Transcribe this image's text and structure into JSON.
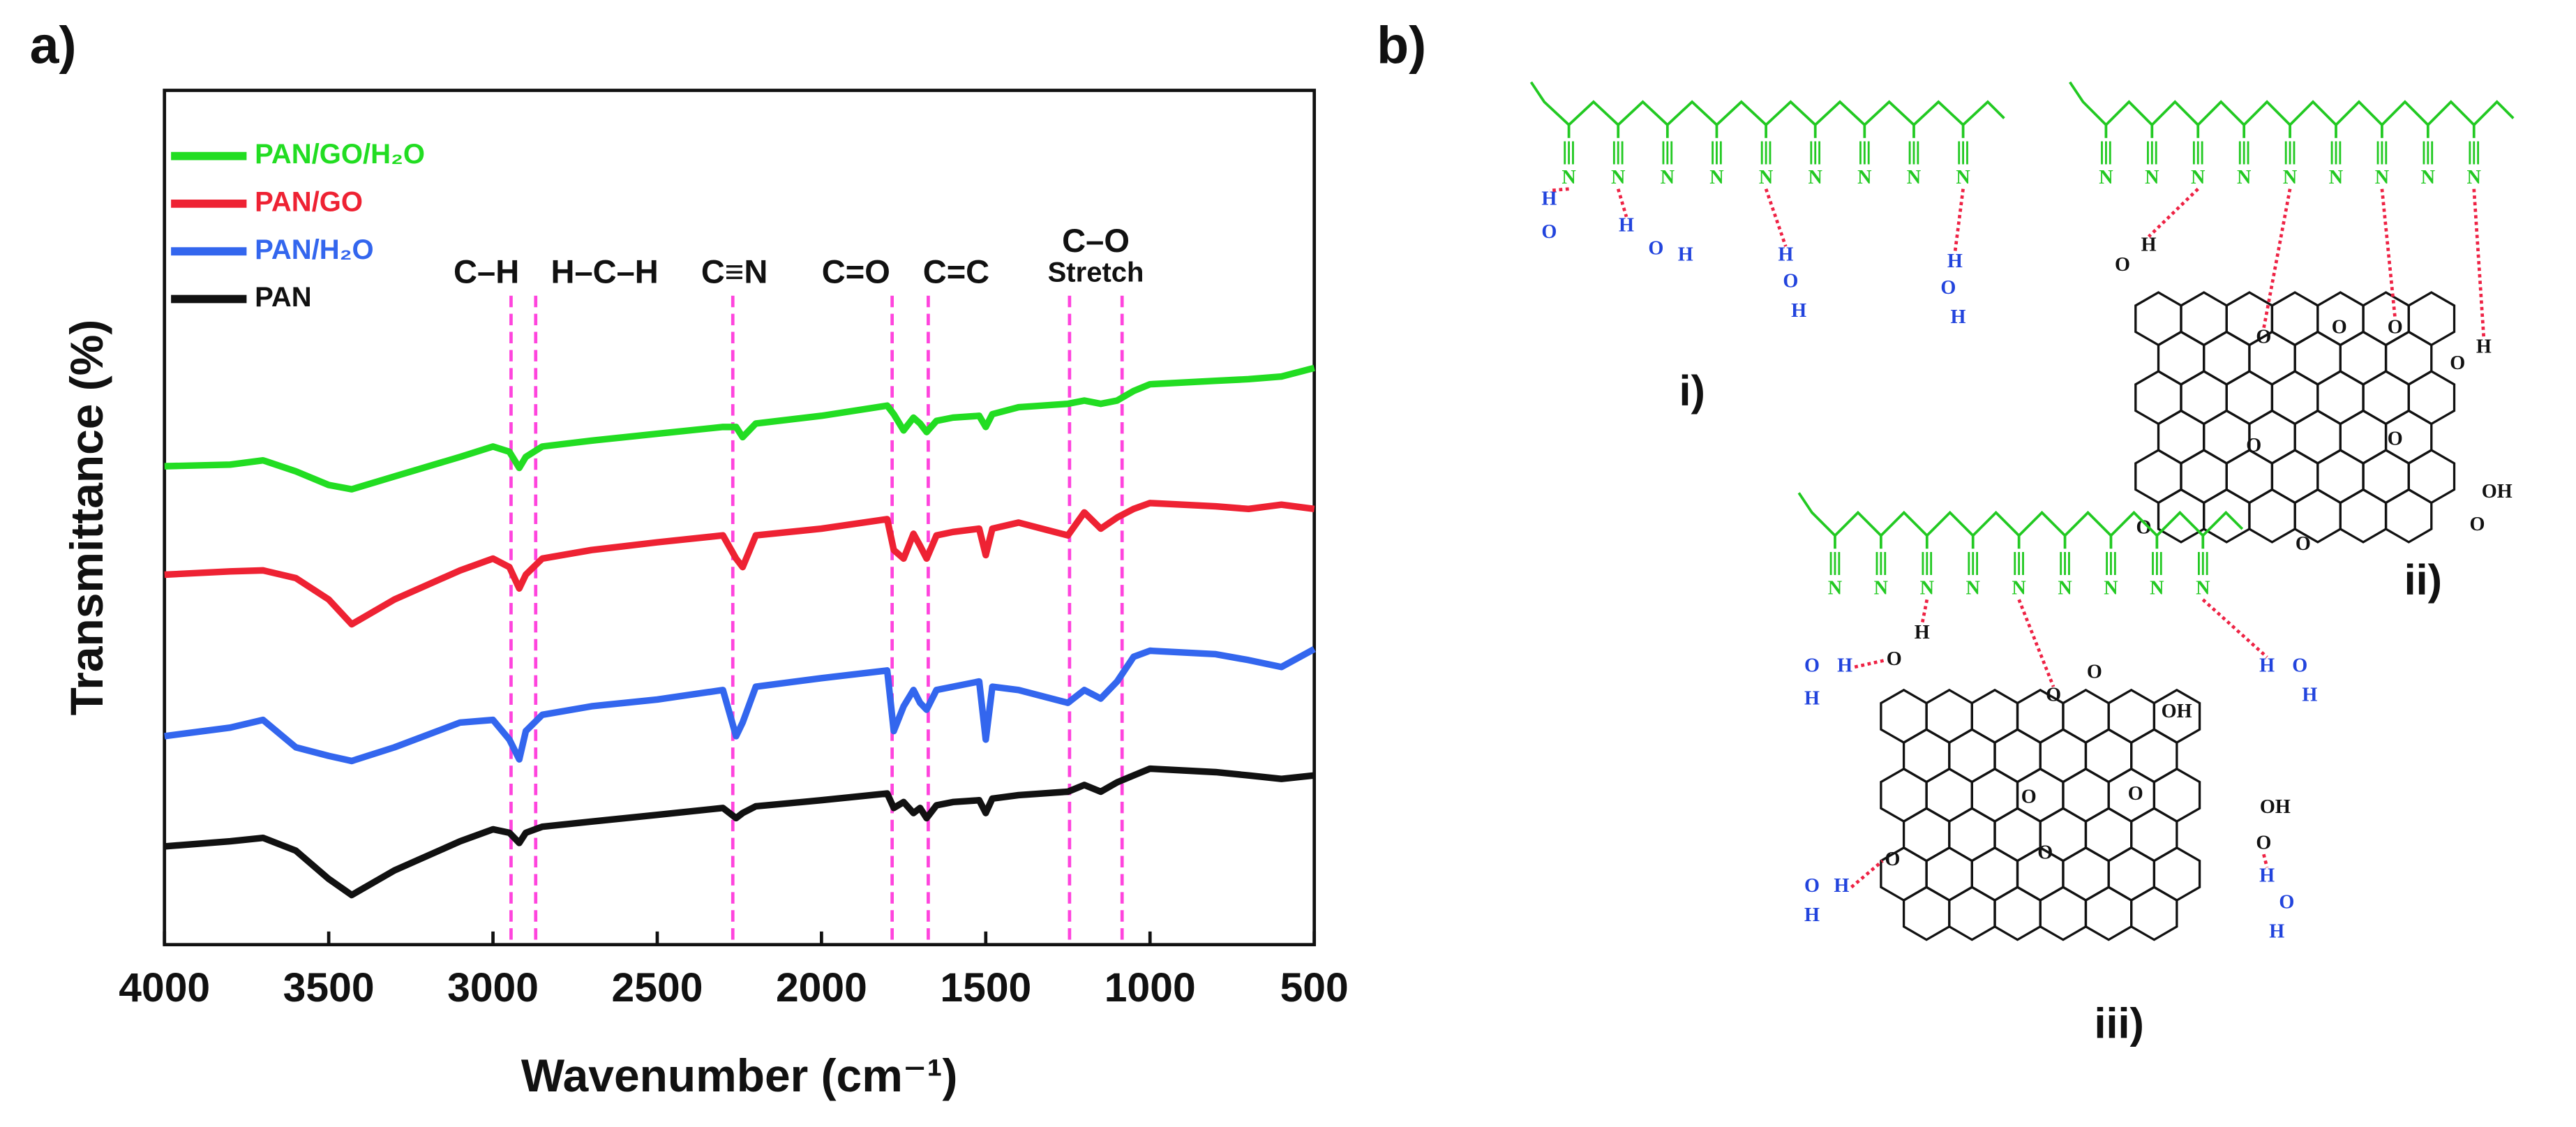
{
  "panel_labels": [
    "a)",
    "b)"
  ],
  "chart_data": {
    "type": "line",
    "x_label": "Wavenumber (cm⁻¹)",
    "y_label": "Transmittance (%)",
    "xlim": [
      4000,
      500
    ],
    "xticks": [
      4000,
      3500,
      3000,
      2500,
      2000,
      1500,
      1000,
      500
    ],
    "ylim": [
      0,
      100
    ],
    "legend": "upper left",
    "x": [
      4000,
      3800,
      3700,
      3600,
      3500,
      3430,
      3300,
      3100,
      3000,
      2950,
      2920,
      2900,
      2850,
      2700,
      2500,
      2300,
      2260,
      2240,
      2200,
      2000,
      1800,
      1780,
      1750,
      1720,
      1700,
      1680,
      1650,
      1600,
      1520,
      1500,
      1480,
      1400,
      1250,
      1200,
      1150,
      1100,
      1050,
      1000,
      800,
      700,
      600,
      500
    ],
    "series": [
      {
        "name": "PAN/GO/H₂O",
        "color": "#22dd22",
        "values": [
          56.0,
          56.2,
          56.7,
          55.4,
          53.8,
          53.3,
          54.8,
          57.1,
          58.3,
          57.7,
          55.8,
          57.1,
          58.3,
          59.0,
          59.8,
          60.6,
          60.6,
          59.4,
          61.0,
          61.9,
          63.1,
          62.1,
          60.2,
          61.7,
          61.0,
          60.0,
          61.3,
          61.7,
          61.9,
          60.6,
          62.1,
          62.9,
          63.3,
          63.7,
          63.3,
          63.7,
          64.8,
          65.6,
          66.0,
          66.2,
          66.5,
          67.5
        ]
      },
      {
        "name": "PAN/GO",
        "color": "#ee2233",
        "values": [
          43.3,
          43.7,
          43.8,
          42.9,
          40.4,
          37.5,
          40.4,
          43.8,
          45.2,
          44.2,
          41.7,
          43.3,
          45.2,
          46.2,
          47.1,
          47.9,
          45.2,
          44.2,
          47.9,
          48.7,
          49.8,
          46.2,
          45.2,
          48.1,
          46.7,
          45.2,
          47.9,
          48.3,
          48.7,
          45.6,
          48.7,
          49.4,
          47.9,
          50.6,
          48.7,
          50.0,
          51.0,
          51.7,
          51.3,
          51.0,
          51.5,
          51.0
        ]
      },
      {
        "name": "PAN/H₂O",
        "color": "#3366ee",
        "values": [
          24.4,
          25.4,
          26.3,
          23.1,
          22.1,
          21.5,
          23.1,
          26.0,
          26.3,
          24.0,
          21.7,
          25.0,
          26.9,
          27.9,
          28.7,
          29.8,
          24.4,
          26.0,
          30.2,
          31.2,
          32.1,
          25.0,
          27.9,
          29.8,
          28.3,
          27.5,
          29.8,
          30.2,
          30.8,
          24.0,
          30.2,
          29.8,
          28.3,
          29.8,
          28.8,
          30.8,
          33.7,
          34.4,
          34.0,
          33.3,
          32.5,
          34.6
        ]
      },
      {
        "name": "PAN",
        "color": "#111111",
        "values": [
          11.5,
          12.1,
          12.5,
          11.0,
          7.7,
          5.8,
          8.7,
          12.1,
          13.5,
          13.1,
          11.9,
          13.1,
          13.8,
          14.4,
          15.2,
          16.0,
          14.8,
          15.4,
          16.2,
          16.9,
          17.7,
          16.0,
          16.7,
          15.4,
          16.0,
          14.8,
          16.3,
          16.7,
          16.9,
          15.4,
          17.1,
          17.5,
          17.9,
          18.7,
          17.9,
          19.0,
          19.8,
          20.6,
          20.2,
          19.8,
          19.4,
          19.8
        ]
      }
    ],
    "annotations": [
      {
        "label": [
          "C–H"
        ],
        "lines": [
          2945
        ]
      },
      {
        "label": [
          "H–C–H"
        ],
        "lines": [
          2870
        ]
      },
      {
        "label": [
          "C≡N"
        ],
        "lines": [
          2270
        ]
      },
      {
        "label": [
          "C=O"
        ],
        "lines": [
          1785
        ]
      },
      {
        "label": [
          "C=C"
        ],
        "lines": [
          1675
        ]
      },
      {
        "label": [
          "C–O",
          "Stretch"
        ],
        "lines": [
          1245,
          1085
        ]
      }
    ],
    "annotation_color": "#ff44dd"
  },
  "diagram": {
    "structures": [
      {
        "label": "i)",
        "nitrogens": [
          "N",
          "N",
          "N",
          "N",
          "N",
          "N",
          "N",
          "N",
          "N"
        ],
        "atoms": [
          "H",
          "O",
          "H",
          "O",
          "H",
          "H",
          "O",
          "H",
          "H",
          "O",
          "H"
        ]
      },
      {
        "label": "ii)",
        "nitrogens": [
          "N",
          "N",
          "N",
          "N",
          "N",
          "N",
          "N",
          "N",
          "N"
        ],
        "atoms": [
          "O",
          "H",
          "O",
          "O",
          "O",
          "O",
          "H",
          "O",
          "O",
          "O",
          "O",
          "OH",
          "O"
        ]
      },
      {
        "label": "iii)",
        "nitrogens": [
          "N",
          "N",
          "N",
          "N",
          "N",
          "N",
          "N",
          "N",
          "N"
        ],
        "atoms": [
          "O",
          "H",
          "H",
          "O",
          "H",
          "O",
          "O",
          "OH",
          "O",
          "O",
          "OH",
          "O",
          "O",
          "O",
          "O",
          "H",
          "H",
          "H",
          "O",
          "H",
          "H",
          "O",
          "H"
        ]
      }
    ]
  }
}
